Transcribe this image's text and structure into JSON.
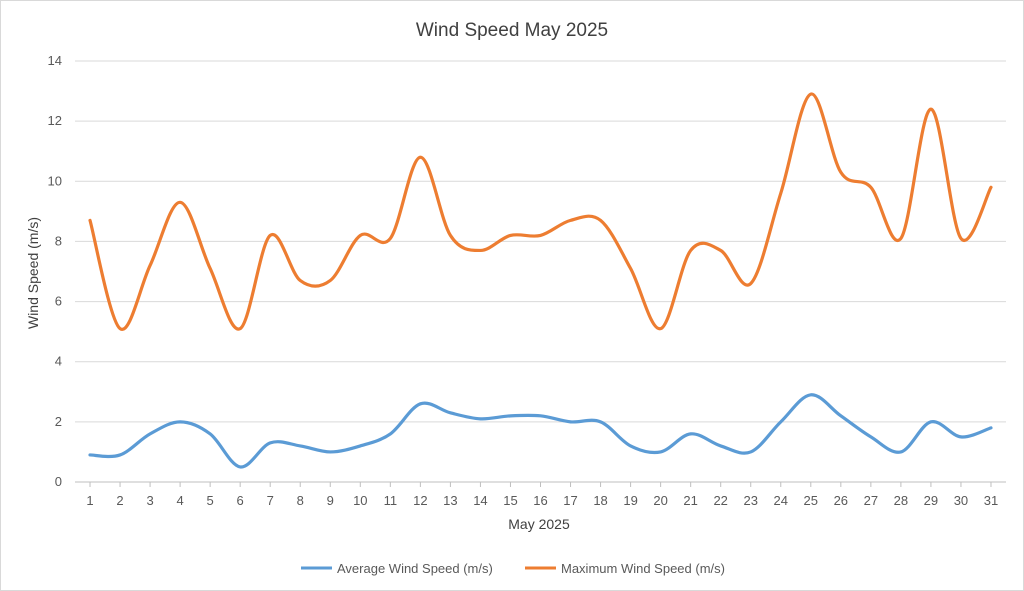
{
  "chart_data": {
    "type": "line",
    "title": "Wind Speed May 2025",
    "xlabel": "May 2025",
    "ylabel": "Wind Speed (m/s)",
    "x": [
      "1",
      "2",
      "3",
      "4",
      "5",
      "6",
      "7",
      "8",
      "9",
      "10",
      "11",
      "12",
      "13",
      "14",
      "15",
      "16",
      "17",
      "18",
      "19",
      "20",
      "21",
      "22",
      "23",
      "24",
      "25",
      "26",
      "27",
      "28",
      "29",
      "30",
      "31"
    ],
    "ylim": [
      0,
      14
    ],
    "yticks": [
      "0",
      "2",
      "4",
      "6",
      "8",
      "10",
      "12",
      "14"
    ],
    "grid": "horizontal",
    "legend_position": "bottom",
    "series": [
      {
        "name": "Average Wind Speed (m/s)",
        "color": "#5b9bd5",
        "values": [
          0.9,
          0.9,
          1.6,
          2.0,
          1.6,
          0.5,
          1.3,
          1.2,
          1.0,
          1.2,
          1.6,
          2.6,
          2.3,
          2.1,
          2.2,
          2.2,
          2.0,
          2.0,
          1.2,
          1.0,
          1.6,
          1.2,
          1.0,
          2.0,
          2.9,
          2.2,
          1.5,
          1.0,
          2.0,
          1.5,
          1.8
        ]
      },
      {
        "name": "Maximum Wind Speed (m/s)",
        "color": "#ed7d31",
        "values": [
          8.7,
          5.1,
          7.2,
          9.3,
          7.1,
          5.1,
          8.2,
          6.7,
          6.7,
          8.2,
          8.1,
          10.8,
          8.2,
          7.7,
          8.2,
          8.2,
          8.7,
          8.7,
          7.1,
          5.1,
          7.7,
          7.7,
          6.6,
          9.6,
          12.9,
          10.3,
          9.8,
          8.1,
          12.4,
          8.1,
          9.8
        ]
      }
    ]
  }
}
